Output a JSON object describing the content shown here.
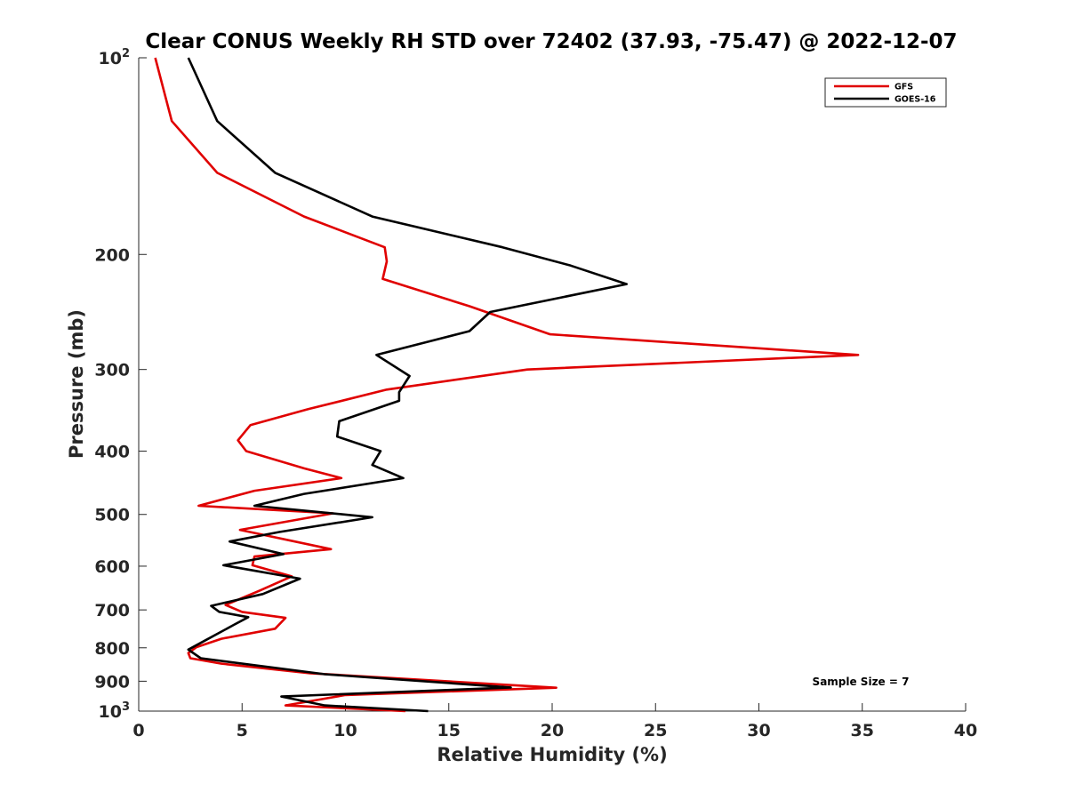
{
  "chart_data": {
    "type": "line",
    "title": "Clear CONUS Weekly RH STD over 72402 (37.93, -75.47) @ 2022-12-07",
    "xlabel": "Relative Humidity (%)",
    "ylabel": "Pressure (mb)",
    "xlim": [
      0,
      40
    ],
    "ylim": [
      100,
      1000
    ],
    "yscale": "log",
    "yreversed": true,
    "xticks": [
      0,
      5,
      10,
      15,
      20,
      25,
      30,
      35,
      40
    ],
    "xtick_labels": [
      "0",
      "5",
      "10",
      "15",
      "20",
      "25",
      "30",
      "35",
      "40"
    ],
    "yticks": [
      100,
      200,
      300,
      400,
      500,
      600,
      700,
      800,
      900,
      1000
    ],
    "ytick_labels": [
      {
        "base": "10",
        "exp": "2"
      },
      {
        "text": "200"
      },
      {
        "text": "300"
      },
      {
        "text": "400"
      },
      {
        "text": "500"
      },
      {
        "text": "600"
      },
      {
        "text": "700"
      },
      {
        "text": "800"
      },
      {
        "text": "900"
      },
      {
        "base": "10",
        "exp": "3"
      }
    ],
    "legend_position": "top-right",
    "annotation": "Sample Size = 7",
    "series": [
      {
        "name": "GFS",
        "color": "#e00000",
        "points": [
          [
            0.8,
            100
          ],
          [
            1.6,
            125
          ],
          [
            3.8,
            150
          ],
          [
            8.0,
            175
          ],
          [
            11.9,
            195
          ],
          [
            12.0,
            205
          ],
          [
            11.8,
            218
          ],
          [
            16.0,
            240
          ],
          [
            19.9,
            265
          ],
          [
            34.8,
            285
          ],
          [
            18.8,
            300
          ],
          [
            12.0,
            322
          ],
          [
            8.2,
            345
          ],
          [
            5.4,
            365
          ],
          [
            4.8,
            385
          ],
          [
            5.2,
            400
          ],
          [
            8.0,
            425
          ],
          [
            9.8,
            440
          ],
          [
            5.6,
            460
          ],
          [
            2.9,
            485
          ],
          [
            9.4,
            498
          ],
          [
            4.9,
            528
          ],
          [
            9.3,
            565
          ],
          [
            5.6,
            580
          ],
          [
            5.5,
            598
          ],
          [
            7.4,
            622
          ],
          [
            5.8,
            655
          ],
          [
            4.2,
            688
          ],
          [
            5.0,
            705
          ],
          [
            7.1,
            720
          ],
          [
            6.6,
            748
          ],
          [
            4.0,
            775
          ],
          [
            2.8,
            798
          ],
          [
            2.4,
            815
          ],
          [
            2.5,
            830
          ],
          [
            4.0,
            846
          ],
          [
            8.3,
            875
          ],
          [
            20.2,
            921
          ],
          [
            10.0,
            945
          ],
          [
            7.1,
            980
          ],
          [
            12.9,
            1000
          ]
        ]
      },
      {
        "name": "GOES-16",
        "color": "#000000",
        "points": [
          [
            2.4,
            100
          ],
          [
            3.8,
            125
          ],
          [
            6.6,
            150
          ],
          [
            11.3,
            175
          ],
          [
            17.6,
            195
          ],
          [
            20.9,
            208
          ],
          [
            23.6,
            222
          ],
          [
            17.0,
            245
          ],
          [
            16.0,
            262
          ],
          [
            11.5,
            285
          ],
          [
            13.1,
            307
          ],
          [
            12.6,
            325
          ],
          [
            12.6,
            335
          ],
          [
            9.7,
            360
          ],
          [
            9.6,
            380
          ],
          [
            11.7,
            400
          ],
          [
            11.3,
            420
          ],
          [
            12.8,
            440
          ],
          [
            8.0,
            465
          ],
          [
            5.6,
            485
          ],
          [
            11.3,
            505
          ],
          [
            6.8,
            532
          ],
          [
            4.4,
            550
          ],
          [
            7.0,
            575
          ],
          [
            4.1,
            598
          ],
          [
            7.8,
            627
          ],
          [
            6.0,
            662
          ],
          [
            3.5,
            690
          ],
          [
            3.9,
            705
          ],
          [
            5.3,
            718
          ],
          [
            4.6,
            738
          ],
          [
            3.2,
            780
          ],
          [
            2.4,
            805
          ],
          [
            3.0,
            830
          ],
          [
            9.0,
            878
          ],
          [
            18.0,
            920
          ],
          [
            6.9,
            950
          ],
          [
            9.0,
            980
          ],
          [
            14.0,
            1000
          ]
        ]
      }
    ]
  }
}
